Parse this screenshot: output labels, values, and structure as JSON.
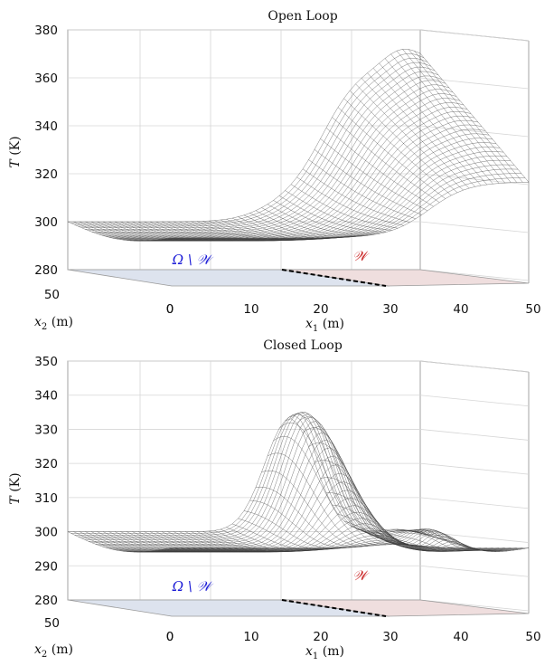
{
  "chart_data": [
    {
      "type": "surface",
      "title": "Open Loop",
      "zlabel": "T (K)",
      "xlabel": "x1 (m)",
      "ylabel": "x2 (m)",
      "zlim": [
        280,
        380
      ],
      "z_ticks": [
        "280",
        "300",
        "320",
        "340",
        "360",
        "380"
      ],
      "x1_ticks": [
        "0",
        "10",
        "20",
        "30",
        "40",
        "50"
      ],
      "x2_ticks": [
        "0",
        "50"
      ],
      "regions": {
        "left": "Ω \\ 𝒲",
        "right": "𝒲"
      },
      "ambient_temperature": 300,
      "peak_temperature": 373,
      "hot_plateau_temperature": 367,
      "colors": {
        "region_left": "#dde3ee",
        "region_right": "#efdede",
        "label_left": "#1a1ad6",
        "label_right": "#c81e1e",
        "mesh": "#3a3a3a"
      }
    },
    {
      "type": "surface",
      "title": "Closed Loop",
      "zlabel": "T (K)",
      "xlabel": "x1 (m)",
      "ylabel": "x2 (m)",
      "zlim": [
        280,
        350
      ],
      "z_ticks": [
        "280",
        "290",
        "300",
        "310",
        "320",
        "330",
        "340",
        "350"
      ],
      "x1_ticks": [
        "0",
        "10",
        "20",
        "30",
        "40",
        "50"
      ],
      "x2_ticks": [
        "0",
        "50"
      ],
      "regions": {
        "left": "Ω \\ 𝒲",
        "right": "𝒲"
      },
      "ambient_temperature": 300,
      "peak_temperature": 337,
      "secondary_peak_temperature": 305,
      "colors": {
        "region_left": "#dde3ee",
        "region_right": "#efdede",
        "label_left": "#1a1ad6",
        "label_right": "#c81e1e",
        "mesh": "#3a3a3a"
      }
    }
  ]
}
